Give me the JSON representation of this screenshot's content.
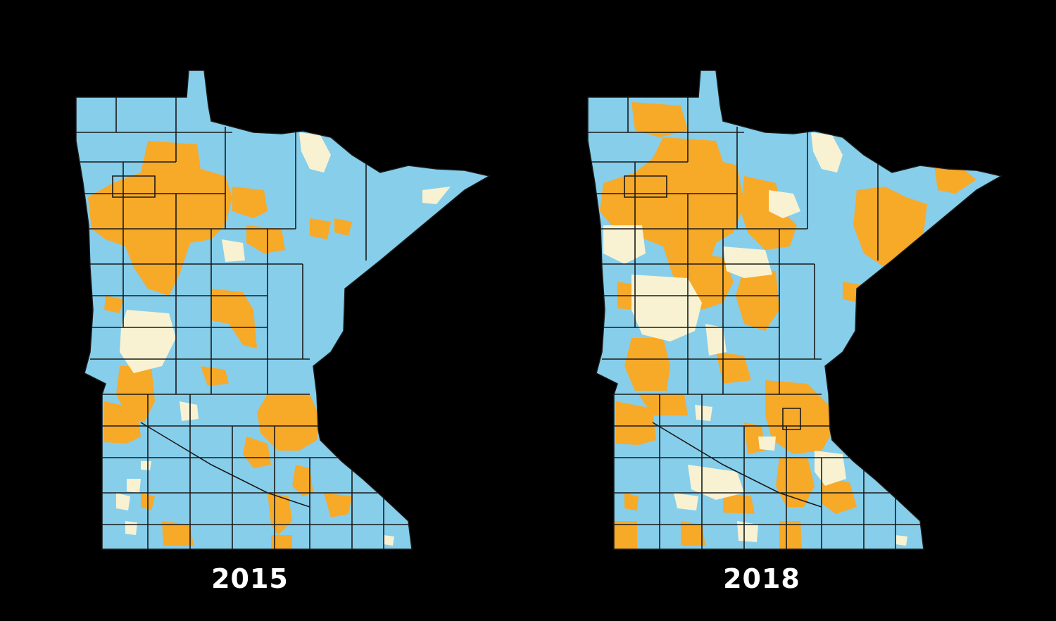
{
  "colors": {
    "background": "#000000",
    "coverage_high": "#87CEEB",
    "coverage_mid": "#F7A928",
    "coverage_low": "#F8F2D2",
    "county_line": "#1a1a1a",
    "label": "#FFFFFF"
  },
  "maps": [
    {
      "id": "map-2015",
      "year_label": "2015"
    },
    {
      "id": "map-2018",
      "year_label": "2018"
    }
  ]
}
